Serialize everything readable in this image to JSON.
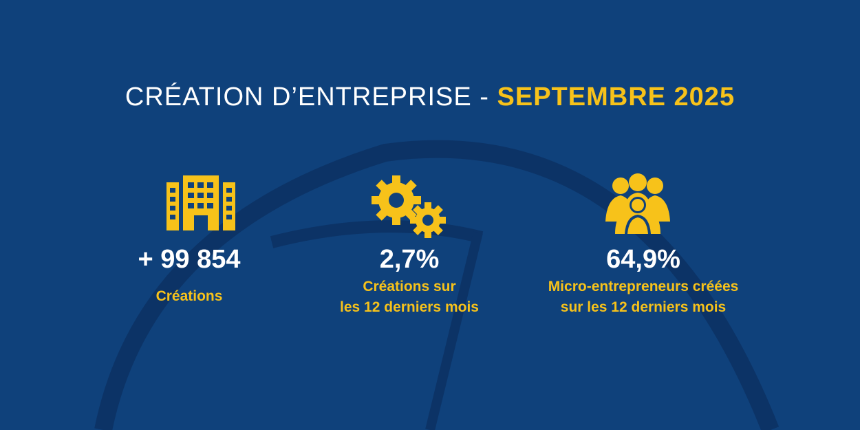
{
  "header": {
    "title_main": "CRÉATION D’ENTREPRISE",
    "title_separator": " - ",
    "title_date": "SEPTEMBRE 2025"
  },
  "colors": {
    "background": "#0f417b",
    "accent": "#f7c21a",
    "text": "#ffffff",
    "decoration": "#0c3366"
  },
  "stats": [
    {
      "icon": "building-icon",
      "value": "+ 99 854",
      "label_lines": [
        "Créations"
      ]
    },
    {
      "icon": "gears-icon",
      "value": "2,7%",
      "label_lines": [
        "Créations sur",
        "les 12 derniers mois"
      ]
    },
    {
      "icon": "people-group-icon",
      "value": "64,9%",
      "label_lines": [
        "Micro-entrepreneurs créées",
        "sur les 12 derniers mois"
      ]
    }
  ]
}
